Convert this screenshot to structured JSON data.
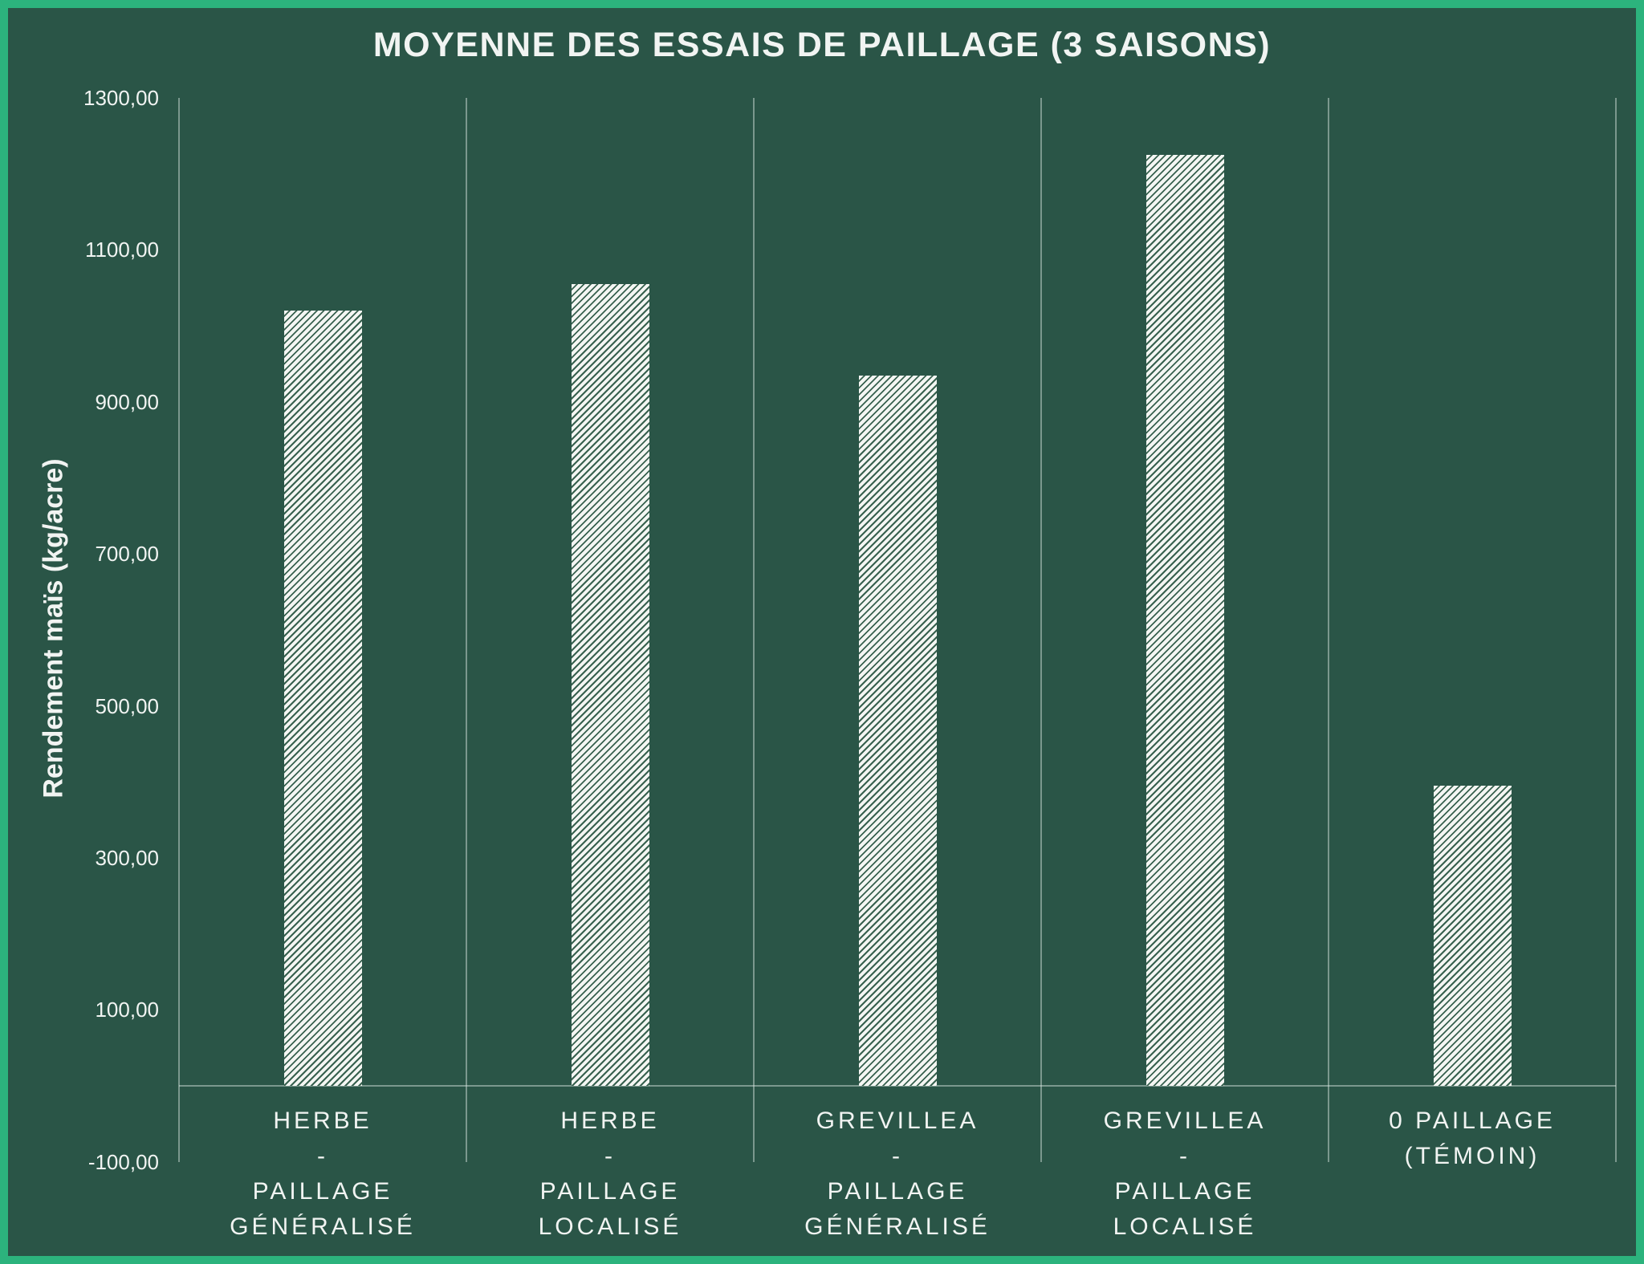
{
  "chart_data": {
    "type": "bar",
    "title": "MOYENNE DES ESSAIS DE PAILLAGE (3 SAISONS)",
    "ylabel": "Rendement maïs (kg/acre)",
    "xlabel": "",
    "categories": [
      "HERBE - PAILLAGE GÉNÉRALISÉ",
      "HERBE - PAILLAGE LOCALISÉ",
      "GREVILLEA - PAILLAGE GÉNÉRALISÉ",
      "GREVILLEA - PAILLAGE LOCALISÉ",
      "0 PAILLAGE (TÉMOIN)"
    ],
    "category_label_lines": [
      [
        "HERBE",
        "-",
        "PAILLAGE",
        "GÉNÉRALISÉ"
      ],
      [
        "HERBE",
        "-",
        "PAILLAGE",
        "LOCALISÉ"
      ],
      [
        "GREVILLEA",
        "-",
        "PAILLAGE",
        "GÉNÉRALISÉ"
      ],
      [
        "GREVILLEA",
        "-",
        "PAILLAGE",
        "LOCALISÉ"
      ],
      [
        "0 PAILLAGE",
        "(TÉMOIN)"
      ]
    ],
    "values": [
      1020,
      1055,
      935,
      1225,
      395
    ],
    "y_ticks": [
      {
        "value": 1300,
        "label": "1300,00"
      },
      {
        "value": 1100,
        "label": "1100,00"
      },
      {
        "value": 900,
        "label": "900,00"
      },
      {
        "value": 700,
        "label": "700,00"
      },
      {
        "value": 500,
        "label": "500,00"
      },
      {
        "value": 300,
        "label": "300,00"
      },
      {
        "value": 100,
        "label": "100,00"
      },
      {
        "value": -100,
        "label": "-100,00"
      }
    ],
    "ylim": [
      -100,
      1300
    ],
    "grid": "vertical category separator lines only, no horizontal gridlines",
    "legend": false,
    "bar_style": "white diagonal hatch (//) on dark green background"
  },
  "colors": {
    "background": "#2a5547",
    "frame_border": "#2cb37d",
    "text": "#f1f4f2",
    "axis_line": "rgba(222,236,229,0.45)",
    "bar_fill": "#f4f6f3",
    "bar_hatch_line": "#38614f"
  }
}
